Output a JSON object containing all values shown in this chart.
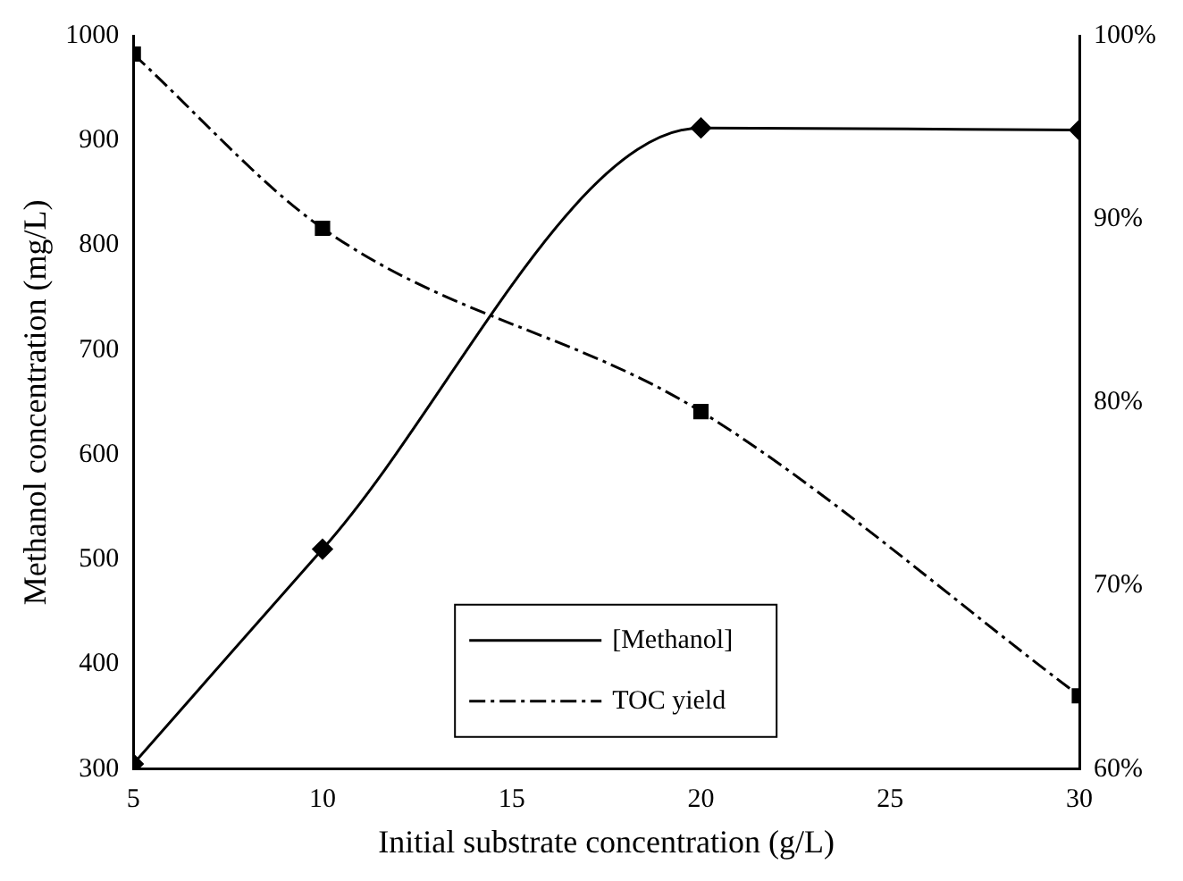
{
  "chart_data": {
    "type": "line",
    "xlabel": "Initial substrate concentration (g/L)",
    "ylabel": "Methanol concentration (mg/L)",
    "x": [
      5,
      10,
      20,
      30
    ],
    "series": [
      {
        "name": "[Methanol]",
        "color": "#000000",
        "values": [
          305,
          510,
          912,
          910
        ],
        "marker": "diamond",
        "line_style": "solid"
      },
      {
        "name": "TOC yield",
        "color": "#000000",
        "values": [
          99,
          89.5,
          79.5,
          64
        ],
        "marker": "square",
        "line_style": "dashed",
        "axis": "y2"
      }
    ],
    "xlim": [
      5,
      30
    ],
    "xticks": [
      5,
      10,
      15,
      20,
      25,
      30
    ],
    "ylim": [
      300,
      1000
    ],
    "yticks": [
      300,
      400,
      500,
      600,
      700,
      800,
      900,
      1000
    ],
    "y2lim": [
      60,
      100
    ],
    "y2ticks": [
      {
        "value": 60,
        "label": "60%"
      },
      {
        "value": 70,
        "label": "70%"
      },
      {
        "value": 80,
        "label": "80%"
      },
      {
        "value": 90,
        "label": "90%"
      },
      {
        "value": 100,
        "label": "100%"
      }
    ],
    "grid": false,
    "legend": "bottom"
  }
}
